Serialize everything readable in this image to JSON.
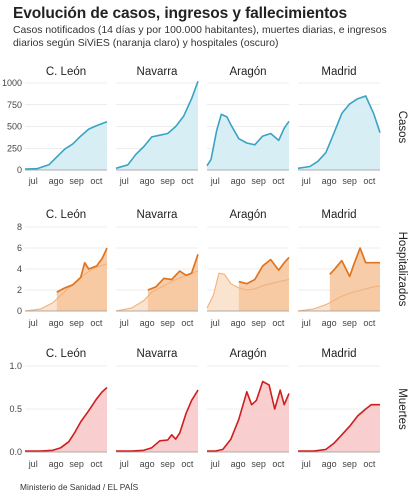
{
  "title": "Evolución de casos, ingresos y fallecimientos",
  "subtitle": "Casos notificados (14 días y por 100.000 habitantes), muertes diarias, e ingresos diarios según SiViES (naranja claro) y hospitales (oscuro)",
  "source": "Ministerio de Sanidad / EL PAÍS",
  "colors": {
    "casos_line": "#3aa3c4",
    "casos_fill": "#d4ecf4",
    "hosp_dark": "#e0741f",
    "hosp_dark_fill": "#f6c79e",
    "hosp_light": "#f2b27c",
    "hosp_light_fill": "#fae0ca",
    "muertes_line": "#cc1f1f",
    "muertes_fill": "#f8c9c9",
    "grid": "#d9d9d9"
  },
  "chart_data": [
    {
      "type": "area",
      "row_label": "Casos",
      "ylim": [
        0,
        1000
      ],
      "yticks": [
        0,
        250,
        500,
        750,
        1000
      ],
      "xticks": [
        "jul",
        "ago",
        "sep",
        "oct"
      ],
      "panels": [
        {
          "region": "C. León",
          "series": [
            {
              "x": [
                0,
                15,
                30,
                40,
                50,
                60,
                70,
                80,
                90,
                100,
                103
              ],
              "values": [
                10,
                15,
                60,
                150,
                240,
                300,
                390,
                470,
                510,
                545,
                555
              ]
            }
          ]
        },
        {
          "region": "Navarra",
          "series": [
            {
              "x": [
                0,
                15,
                25,
                35,
                45,
                55,
                65,
                75,
                85,
                95,
                103
              ],
              "values": [
                20,
                60,
                180,
                270,
                380,
                400,
                420,
                500,
                620,
                820,
                1020
              ]
            }
          ]
        },
        {
          "region": "Aragón",
          "series": [
            {
              "x": [
                0,
                5,
                12,
                18,
                25,
                30,
                40,
                50,
                60,
                70,
                80,
                90,
                97,
                103
              ],
              "values": [
                50,
                120,
                450,
                640,
                610,
                520,
                360,
                310,
                290,
                390,
                420,
                340,
                480,
                560
              ]
            }
          ]
        },
        {
          "region": "Madrid",
          "series": [
            {
              "x": [
                0,
                15,
                25,
                35,
                45,
                55,
                65,
                75,
                85,
                95,
                103
              ],
              "values": [
                20,
                40,
                100,
                200,
                420,
                650,
                760,
                820,
                850,
                650,
                430
              ]
            }
          ]
        }
      ]
    },
    {
      "type": "area",
      "row_label": "Hospitalizados",
      "ylim": [
        0,
        8
      ],
      "yticks": [
        0,
        2,
        4,
        6,
        8
      ],
      "xticks": [
        "jul",
        "ago",
        "sep",
        "oct"
      ],
      "panels": [
        {
          "region": "C. León",
          "series": [
            {
              "name": "SiViES",
              "x": [
                0,
                20,
                35,
                45,
                55,
                65,
                75,
                85,
                95,
                103
              ],
              "values": [
                0,
                0.2,
                0.8,
                1.5,
                2.2,
                2.8,
                3.5,
                4.0,
                4.3,
                4.5
              ]
            },
            {
              "name": "hospitales",
              "x": [
                40,
                50,
                60,
                70,
                75,
                80,
                90,
                97,
                103
              ],
              "values": [
                1.8,
                2.2,
                2.5,
                3.2,
                4.6,
                4.0,
                4.3,
                5.0,
                6.0
              ]
            }
          ]
        },
        {
          "region": "Navarra",
          "series": [
            {
              "name": "SiViES",
              "x": [
                0,
                20,
                35,
                45,
                55,
                65,
                75,
                85,
                95,
                103
              ],
              "values": [
                0,
                0.3,
                1.0,
                1.8,
                2.2,
                2.6,
                3.0,
                3.3,
                3.6,
                3.8
              ]
            },
            {
              "name": "hospitales",
              "x": [
                40,
                50,
                60,
                70,
                80,
                88,
                95,
                103
              ],
              "values": [
                2.0,
                2.3,
                3.1,
                3.0,
                3.8,
                3.4,
                3.6,
                5.4
              ]
            }
          ]
        },
        {
          "region": "Aragón",
          "series": [
            {
              "name": "SiViES",
              "x": [
                0,
                8,
                15,
                22,
                30,
                40,
                50,
                60,
                70,
                80,
                90,
                103
              ],
              "values": [
                0.3,
                1.5,
                3.6,
                3.5,
                2.6,
                2.2,
                2.0,
                2.1,
                2.4,
                2.6,
                2.8,
                3.0
              ]
            },
            {
              "name": "hospitales",
              "x": [
                40,
                50,
                60,
                70,
                80,
                90,
                97,
                103
              ],
              "values": [
                2.8,
                2.6,
                3.0,
                4.3,
                4.9,
                3.9,
                4.6,
                5.1
              ]
            }
          ]
        },
        {
          "region": "Madrid",
          "series": [
            {
              "name": "SiViES",
              "x": [
                0,
                20,
                35,
                45,
                55,
                65,
                75,
                85,
                95,
                103
              ],
              "values": [
                0,
                0.2,
                0.6,
                1.0,
                1.4,
                1.7,
                1.9,
                2.1,
                2.3,
                2.4
              ]
            },
            {
              "name": "hospitales",
              "x": [
                40,
                45,
                55,
                65,
                70,
                78,
                85,
                93,
                103
              ],
              "values": [
                3.5,
                3.9,
                4.8,
                3.3,
                4.4,
                6.0,
                4.6,
                4.6,
                4.6
              ]
            }
          ]
        }
      ]
    },
    {
      "type": "area",
      "row_label": "Muertes",
      "ylim": [
        0,
        1.0
      ],
      "yticks": [
        0.0,
        0.5,
        1.0
      ],
      "xticks": [
        "jul",
        "ago",
        "sep",
        "oct"
      ],
      "panels": [
        {
          "region": "C. León",
          "series": [
            {
              "x": [
                0,
                20,
                35,
                45,
                55,
                62,
                70,
                80,
                90,
                97,
                103
              ],
              "values": [
                0.01,
                0.01,
                0.02,
                0.05,
                0.12,
                0.22,
                0.35,
                0.48,
                0.62,
                0.7,
                0.75
              ]
            }
          ]
        },
        {
          "region": "Navarra",
          "series": [
            {
              "x": [
                0,
                20,
                35,
                45,
                55,
                65,
                70,
                75,
                80,
                88,
                95,
                103
              ],
              "values": [
                0.01,
                0.01,
                0.02,
                0.05,
                0.13,
                0.14,
                0.2,
                0.15,
                0.22,
                0.45,
                0.6,
                0.72
              ]
            }
          ]
        },
        {
          "region": "Aragón",
          "series": [
            {
              "x": [
                0,
                10,
                20,
                30,
                40,
                50,
                56,
                62,
                70,
                78,
                85,
                92,
                97,
                103
              ],
              "values": [
                0.01,
                0.01,
                0.03,
                0.15,
                0.38,
                0.7,
                0.55,
                0.6,
                0.82,
                0.78,
                0.5,
                0.72,
                0.55,
                0.68
              ]
            }
          ]
        },
        {
          "region": "Madrid",
          "series": [
            {
              "x": [
                0,
                20,
                35,
                45,
                55,
                65,
                75,
                85,
                92,
                97,
                103
              ],
              "values": [
                0.01,
                0.01,
                0.03,
                0.1,
                0.2,
                0.3,
                0.42,
                0.5,
                0.55,
                0.55,
                0.55
              ]
            }
          ]
        }
      ]
    }
  ]
}
